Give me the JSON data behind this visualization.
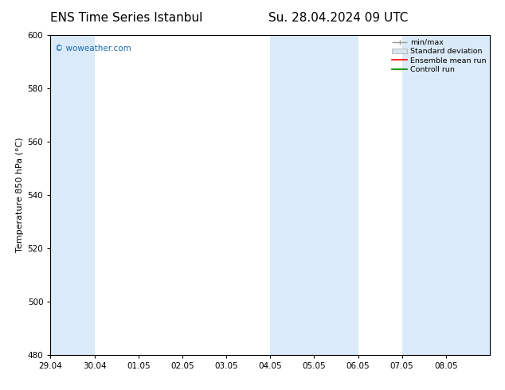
{
  "title_left": "ENS Time Series Istanbul",
  "title_right": "Su. 28.04.2024 09 UTC",
  "ylabel": "Temperature 850 hPa (°C)",
  "ylim": [
    480,
    600
  ],
  "yticks": [
    480,
    500,
    520,
    540,
    560,
    580,
    600
  ],
  "xtick_labels": [
    "29.04",
    "30.04",
    "01.05",
    "02.05",
    "03.05",
    "04.05",
    "05.05",
    "06.05",
    "07.05",
    "08.05"
  ],
  "watermark": "© woweather.com",
  "watermark_color": "#1a6bb5",
  "background_color": "#ffffff",
  "plot_bg_color": "#ffffff",
  "band_color": "#daeaf8",
  "bands": [
    {
      "start": 0,
      "end": 1
    },
    {
      "start": 5,
      "end": 7
    },
    {
      "start": 8,
      "end": 10
    }
  ],
  "legend_labels": [
    "min/max",
    "Standard deviation",
    "Ensemble mean run",
    "Controll run"
  ],
  "legend_colors": [
    "#aaaaaa",
    "#cccccc",
    "#ff0000",
    "#008000"
  ],
  "title_fontsize": 11,
  "axis_fontsize": 8,
  "tick_fontsize": 7.5
}
